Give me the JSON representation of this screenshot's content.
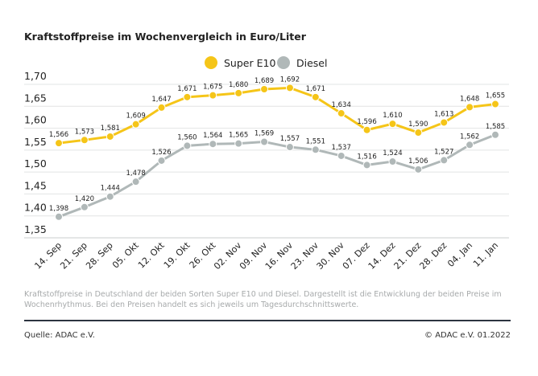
{
  "chart_data": {
    "type": "line",
    "title": "Kraftstoffpreise im Wochenvergleich in Euro/Liter",
    "categories": [
      "14. Sep",
      "21. Sep",
      "28. Sep",
      "05. Okt",
      "12. Okt",
      "19. Okt",
      "26. Okt",
      "02. Nov",
      "09. Nov",
      "16. Nov",
      "23. Nov",
      "30. Nov",
      "07. Dez",
      "14. Dez",
      "21. Dez",
      "28. Dez",
      "04. Jan",
      "11. Jan"
    ],
    "series": [
      {
        "name": "Super E10",
        "color": "#f5c518",
        "values": [
          1.566,
          1.573,
          1.581,
          1.609,
          1.647,
          1.671,
          1.675,
          1.68,
          1.689,
          1.692,
          1.671,
          1.634,
          1.596,
          1.61,
          1.59,
          1.613,
          1.648,
          1.655
        ]
      },
      {
        "name": "Diesel",
        "color": "#b0b8b8",
        "values": [
          1.398,
          1.42,
          1.444,
          1.478,
          1.526,
          1.56,
          1.564,
          1.565,
          1.569,
          1.557,
          1.551,
          1.537,
          1.516,
          1.524,
          1.506,
          1.527,
          1.562,
          1.585
        ]
      }
    ],
    "yticks": [
      "1,70",
      "1,65",
      "1,60",
      "1,55",
      "1,50",
      "1,45",
      "1,40",
      "1,35"
    ],
    "ylim": [
      1.35,
      1.7
    ],
    "grid": true,
    "legend": "top-center",
    "xlabel": "",
    "ylabel": ""
  },
  "caption": "Kraftstoffpreise in Deutschland der beiden Sorten Super E10 und Diesel. Dargestellt ist die Entwicklung der beiden Preise im Wochenrhythmus. Bei den Preisen handelt es sich jeweils um Tagesdurchschnittswerte.",
  "source": "Quelle: ADAC e.V.",
  "copyright": "© ADAC e.V. 01.2022"
}
